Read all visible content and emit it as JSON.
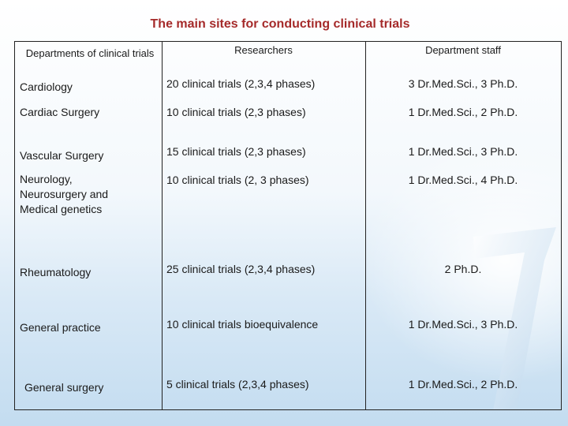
{
  "title": "The main sites for conducting clinical trials",
  "columns": {
    "departments": "Departments of clinical trials",
    "researchers": "Researchers",
    "staff": "Department staff"
  },
  "rows": [
    {
      "department": "Cardiology",
      "researchers": "20 clinical trials  (2,3,4 phases)",
      "staff": "3 Dr.Med.Sci., 3 Ph.D."
    },
    {
      "department": "Cardiac Surgery",
      "researchers": "10 clinical trials (2,3 phases)",
      "staff": "1 Dr.Med.Sci., 2 Ph.D."
    },
    {
      "department": "Vascular Surgery",
      "researchers": "15 clinical trials (2,3 phases)",
      "staff": "1 Dr.Med.Sci., 3 Ph.D."
    },
    {
      "department": "Neurology, Neurosurgery and Medical genetics",
      "researchers": "10 clinical trials (2, 3 phases)",
      "staff": "1 Dr.Med.Sci.,  4 Ph.D."
    },
    {
      "department": "Rheumatology",
      "researchers": "25 clinical trials (2,3,4 phases)",
      "staff": "2 Ph.D."
    },
    {
      "department": "General practice",
      "researchers": "10 clinical trials bioequivalence",
      "staff": "1 Dr.Med.Sci.,  3 Ph.D."
    },
    {
      "department": "General surgery",
      "researchers": "5 clinical trials (2,3,4 phases)",
      "staff": "1 Dr.Med.Sci., 2 Ph.D."
    }
  ]
}
